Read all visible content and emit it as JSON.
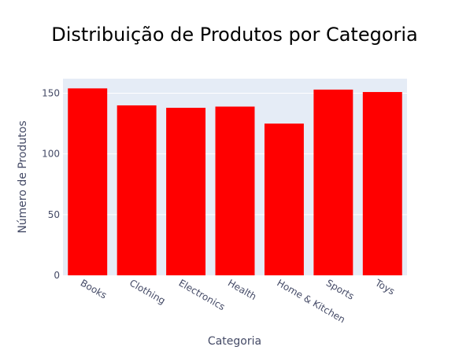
{
  "chart_data": {
    "type": "bar",
    "title": "Distribuição de Produtos por Categoria",
    "xlabel": "Categoria",
    "ylabel": "Número de Produtos",
    "categories": [
      "Books",
      "Clothing",
      "Electronics",
      "Health",
      "Home & Kitchen",
      "Sports",
      "Toys"
    ],
    "values": [
      154,
      140,
      138,
      139,
      125,
      153,
      151
    ],
    "ylim": [
      0,
      162
    ],
    "yticks": [
      0,
      50,
      100,
      150
    ],
    "grid": true,
    "bar_color": "#ff0000",
    "plot_background": "#e5ecf6",
    "gridline_color": "#ffffff"
  }
}
